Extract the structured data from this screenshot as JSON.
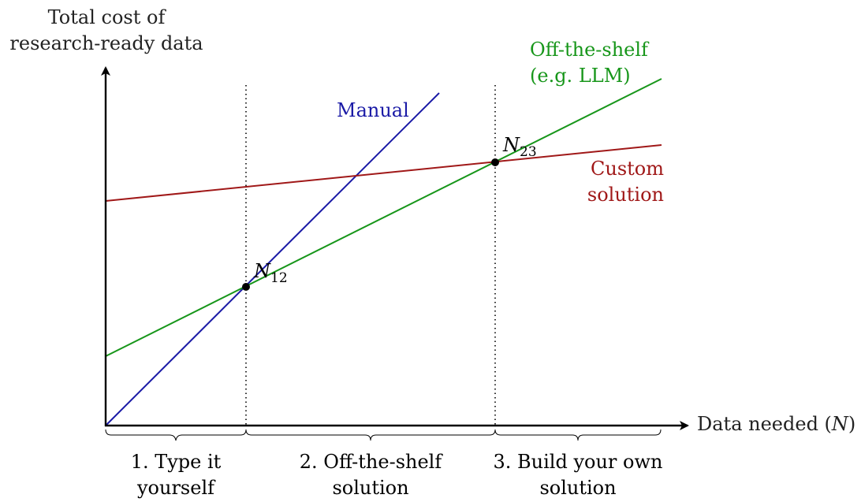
{
  "axes": {
    "y_label_line1": "Total cost of",
    "y_label_line2": "research-ready data",
    "x_label_prefix": "Data needed (",
    "x_label_var": "N",
    "x_label_suffix": ")"
  },
  "lines": {
    "manual": {
      "label": "Manual",
      "color": "#1a1aa6"
    },
    "off_the_shelf": {
      "label_line1": "Off-the-shelf",
      "label_line2": "(e.g. LLM)",
      "color": "#17961a"
    },
    "custom": {
      "label_line1": "Custom",
      "label_line2": "solution",
      "color": "#a01818"
    }
  },
  "points": {
    "n12": {
      "var": "N",
      "sub": "12"
    },
    "n23": {
      "var": "N",
      "sub": "23"
    }
  },
  "regions": [
    {
      "line1": "1. Type it",
      "line2": "yourself"
    },
    {
      "line1": "2. Off-the-shelf",
      "line2": "solution"
    },
    {
      "line1": "3. Build your own",
      "line2": "solution"
    }
  ]
}
